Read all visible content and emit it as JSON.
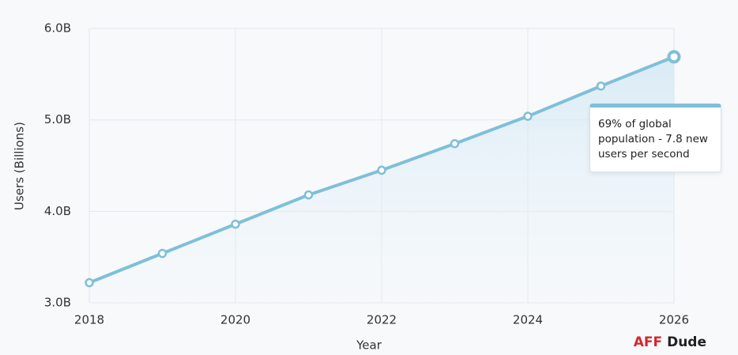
{
  "chart_data": {
    "type": "line",
    "x_label": "Year",
    "y_label": "Users (Billions)",
    "x": [
      2018,
      2019,
      2020,
      2021,
      2022,
      2023,
      2024,
      2025,
      2026
    ],
    "values": [
      3.22,
      3.54,
      3.86,
      4.18,
      4.45,
      4.74,
      5.04,
      5.37,
      5.69
    ],
    "color": "#7fbfd9",
    "xlim": [
      2018,
      2026
    ],
    "xticks": [
      2018,
      2020,
      2022,
      2024,
      2026
    ],
    "ylim": [
      3,
      6
    ],
    "yticks": [
      {
        "value": 3,
        "label": "3.0B"
      },
      {
        "value": 4,
        "label": "4.0B"
      },
      {
        "value": 5,
        "label": "5.0B"
      },
      {
        "value": 6,
        "label": "6.0B"
      }
    ],
    "grid": true,
    "area_fill": true,
    "annotation": "69% of global population - 7.8 new users per second"
  },
  "watermark": {
    "brand": "AFF",
    "name": "Dude"
  }
}
